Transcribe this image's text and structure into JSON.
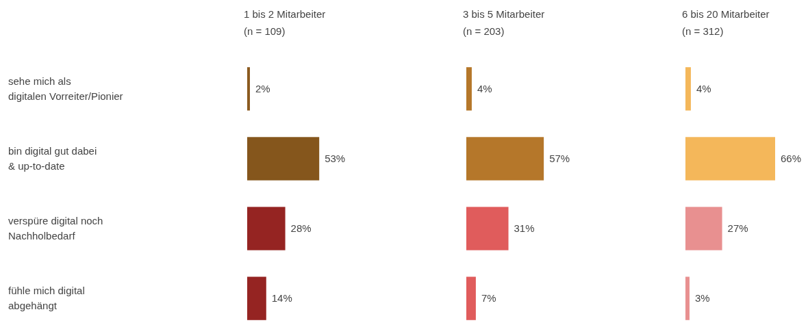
{
  "chart_data": [
    {
      "type": "bar",
      "orientation": "horizontal",
      "title": "1 bis 2 Mitarbeiter",
      "subtitle": "(n = 109)",
      "categories": [
        "sehe mich als\ndigitalen Vorreiter/Pionier",
        "bin digital gut dabei\n& up-to-date",
        "verspüre digital noch\nNachholbedarf",
        "fühle mich digital\nabgehängt"
      ],
      "values": [
        2,
        53,
        28,
        14
      ],
      "colors": [
        "#8b5a1f",
        "#85561c",
        "#952422",
        "#952422"
      ],
      "value_labels": [
        "2%",
        "53%",
        "28%",
        "14%"
      ]
    },
    {
      "type": "bar",
      "orientation": "horizontal",
      "title": "3 bis 5 Mitarbeiter",
      "subtitle": "(n = 203)",
      "categories": [
        null,
        null,
        null,
        null
      ],
      "values": [
        4,
        57,
        31,
        7
      ],
      "colors": [
        "#b5772a",
        "#b5772a",
        "#e05c5c",
        "#e05c5c"
      ],
      "value_labels": [
        "4%",
        "57%",
        "31%",
        "7%"
      ]
    },
    {
      "type": "bar",
      "orientation": "horizontal",
      "title": "6 bis 20 Mitarbeiter",
      "subtitle": "(n = 312)",
      "categories": [
        null,
        null,
        null,
        null
      ],
      "values": [
        4,
        66,
        27,
        3
      ],
      "colors": [
        "#f4b75a",
        "#f4b75a",
        "#e89090",
        "#e89090"
      ],
      "value_labels": [
        "4%",
        "66%",
        "27%",
        "3%"
      ]
    }
  ]
}
